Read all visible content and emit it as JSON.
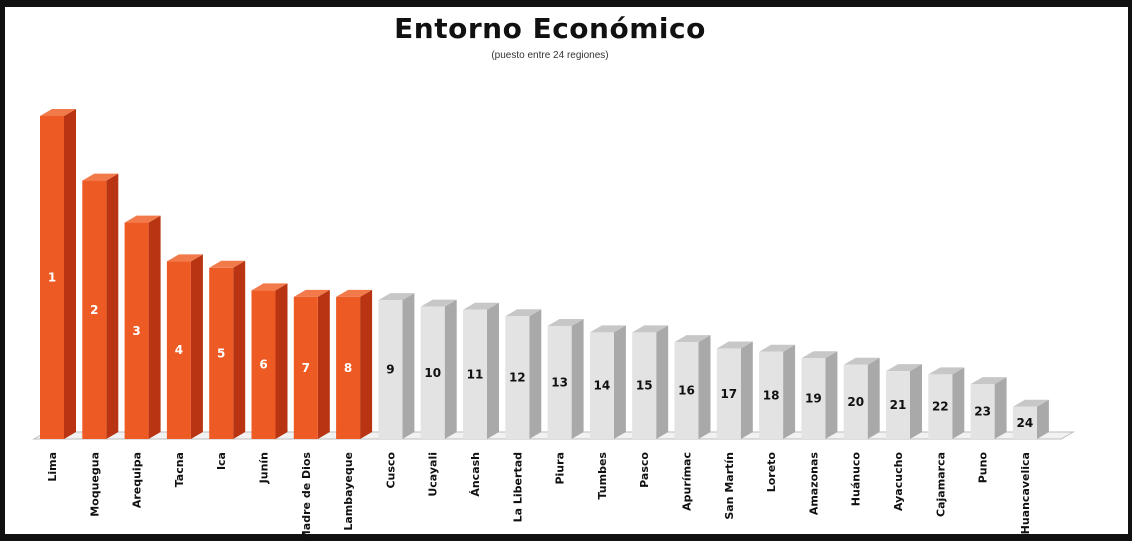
{
  "chart_data": {
    "type": "bar",
    "title": "Entorno Económico",
    "subtitle": "(puesto entre 24 regiones)",
    "categories": [
      "Lima",
      "Moquegua",
      "Arequipa",
      "Tacna",
      "Ica",
      "Junín",
      "Madre de Dios",
      "Lambayeque",
      "Cusco",
      "Ucayali",
      "Áncash",
      "La Libertad",
      "Piura",
      "Tumbes",
      "Pasco",
      "Apurímac",
      "San Martín",
      "Loreto",
      "Amazonas",
      "Huánuco",
      "Ayacucho",
      "Cajamarca",
      "Puno",
      "Huancavelica"
    ],
    "values": [
      1,
      2,
      3,
      4,
      5,
      6,
      7,
      8,
      9,
      10,
      11,
      12,
      13,
      14,
      15,
      16,
      17,
      18,
      19,
      20,
      21,
      22,
      23,
      24
    ],
    "bar_heights_relative": [
      100,
      80,
      67,
      55,
      53,
      46,
      44,
      44,
      43,
      41,
      40,
      38,
      35,
      33,
      33,
      30,
      28,
      27,
      25,
      23,
      21,
      20,
      17,
      10
    ],
    "highlight_top_n": 8,
    "colors": {
      "highlight_front": "#ee5a24",
      "highlight_side": "#b83412",
      "highlight_top": "#f27a4a",
      "normal_front": "#e3e3e3",
      "normal_side": "#a9a9a9",
      "normal_top": "#c7c7c7",
      "highlight_label": "#ffffff",
      "normal_label": "#111111"
    }
  }
}
